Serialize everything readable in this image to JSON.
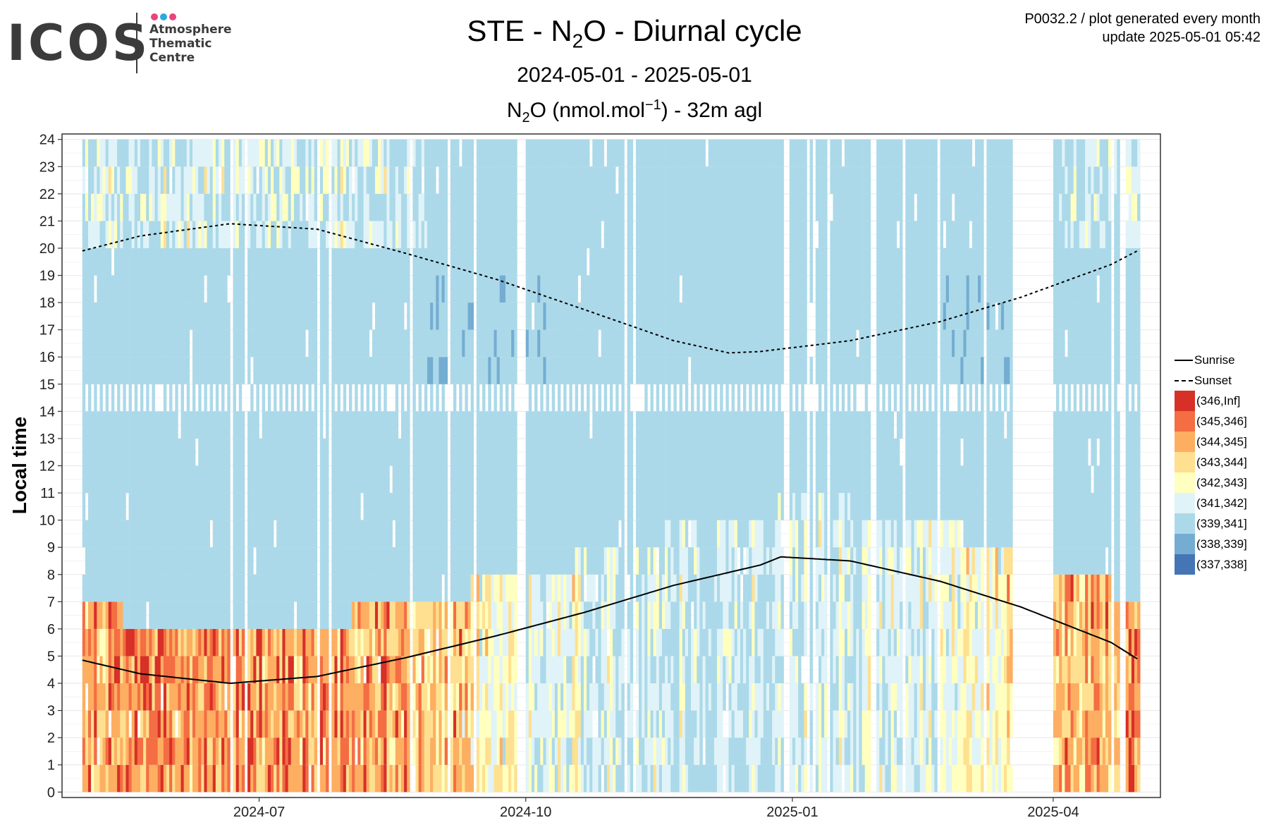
{
  "header": {
    "logo_word": "ICOS",
    "logo_lines": [
      "Atmosphere",
      "Thematic",
      "Centre"
    ],
    "logo_dot_colors": [
      "#e8447f",
      "#2aa9e0",
      "#e8447f"
    ],
    "title_main": "STE - N",
    "title_sub": "2",
    "title_tail": "O - Diurnal cycle",
    "date_range": "2024-05-01 - 2025-05-01",
    "variable_pre": "N",
    "variable_sub": "2",
    "variable_mid": "O (nmol.mol",
    "variable_sup": "−1",
    "variable_tail": ") - 32m agl",
    "meta_line1": "P0032.2 / plot generated every month",
    "meta_line2": "update  2025-05-01 05:42"
  },
  "chart_data": {
    "type": "heatmap",
    "title": "STE - N2O - Diurnal cycle",
    "ylabel": "Local time",
    "xlabel": "",
    "x_range": [
      "2024-04-24",
      "2025-05-08"
    ],
    "data_x_range": [
      "2024-05-01",
      "2025-04-30"
    ],
    "ylim": [
      -0.2,
      24.2
    ],
    "y_ticks": [
      "0",
      "1",
      "2",
      "3",
      "4",
      "5",
      "6",
      "7",
      "8",
      "9",
      "10",
      "11",
      "12",
      "13",
      "14",
      "15",
      "16",
      "17",
      "18",
      "19",
      "20",
      "21",
      "22",
      "23",
      "24"
    ],
    "x_ticks": [
      {
        "date": "2024-07-01",
        "label": "2024-07"
      },
      {
        "date": "2024-10-01",
        "label": "2024-10"
      },
      {
        "date": "2025-01-01",
        "label": "2025-01"
      },
      {
        "date": "2025-04-01",
        "label": "2025-04"
      }
    ],
    "grid": true,
    "bins": [
      {
        "label": "(346,Inf]",
        "color": "#d73027"
      },
      {
        "label": "(345,346]",
        "color": "#f46d43"
      },
      {
        "label": "(344,345]",
        "color": "#fdae61"
      },
      {
        "label": "(343,344]",
        "color": "#fee090"
      },
      {
        "label": "(342,343]",
        "color": "#ffffbf"
      },
      {
        "label": "(341,342]",
        "color": "#e0f3f8"
      },
      {
        "label": "(339,341]",
        "color": "#abd9e9"
      },
      {
        "label": "(338,339]",
        "color": "#74add1"
      },
      {
        "label": "(337,338]",
        "color": "#4575b4"
      }
    ],
    "data_gap": [
      "2025-03-18",
      "2025-03-31"
    ],
    "sunrise": {
      "name": "Sunrise",
      "points": [
        {
          "date": "2024-05-01",
          "hour": 4.85
        },
        {
          "date": "2024-05-21",
          "hour": 4.35
        },
        {
          "date": "2024-06-21",
          "hour": 4.0
        },
        {
          "date": "2024-07-21",
          "hour": 4.25
        },
        {
          "date": "2024-08-21",
          "hour": 4.95
        },
        {
          "date": "2024-09-21",
          "hour": 5.75
        },
        {
          "date": "2024-10-21",
          "hour": 6.6
        },
        {
          "date": "2024-11-21",
          "hour": 7.6
        },
        {
          "date": "2024-12-21",
          "hour": 8.35
        },
        {
          "date": "2024-12-28",
          "hour": 8.65
        },
        {
          "date": "2025-01-21",
          "hour": 8.5
        },
        {
          "date": "2025-02-21",
          "hour": 7.75
        },
        {
          "date": "2025-03-21",
          "hour": 6.8
        },
        {
          "date": "2025-04-21",
          "hour": 5.5
        },
        {
          "date": "2025-04-30",
          "hour": 4.9
        }
      ]
    },
    "sunset": {
      "name": "Sunset",
      "points": [
        {
          "date": "2024-05-01",
          "hour": 19.9
        },
        {
          "date": "2024-05-21",
          "hour": 20.45
        },
        {
          "date": "2024-06-21",
          "hour": 20.9
        },
        {
          "date": "2024-07-21",
          "hour": 20.7
        },
        {
          "date": "2024-08-21",
          "hour": 19.8
        },
        {
          "date": "2024-09-21",
          "hour": 18.85
        },
        {
          "date": "2024-10-21",
          "hour": 17.75
        },
        {
          "date": "2024-11-21",
          "hour": 16.6
        },
        {
          "date": "2024-12-10",
          "hour": 16.15
        },
        {
          "date": "2024-12-21",
          "hour": 16.2
        },
        {
          "date": "2025-01-21",
          "hour": 16.6
        },
        {
          "date": "2025-02-21",
          "hour": 17.3
        },
        {
          "date": "2025-03-21",
          "hour": 18.2
        },
        {
          "date": "2025-04-21",
          "hour": 19.4
        },
        {
          "date": "2025-04-30",
          "hour": 19.9
        }
      ]
    }
  },
  "legend": {
    "sunrise_label": "Sunrise",
    "sunset_label": "Sunset"
  }
}
